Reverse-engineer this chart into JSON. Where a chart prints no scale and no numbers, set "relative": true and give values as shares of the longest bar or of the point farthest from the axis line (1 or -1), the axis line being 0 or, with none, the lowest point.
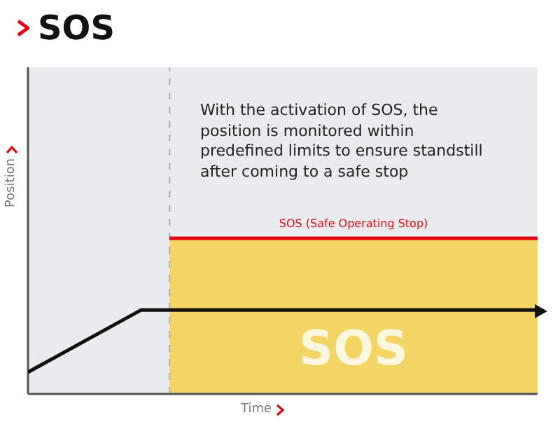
{
  "chart_data": {
    "type": "line",
    "title": "SOS",
    "xlabel": "Time",
    "ylabel": "Position",
    "relative": true,
    "categories": [
      null,
      null,
      null,
      null,
      null,
      null,
      null,
      null,
      null,
      null,
      null,
      null,
      null,
      null,
      null,
      null,
      null,
      null,
      null
    ],
    "series": [
      {
        "type": "area",
        "name": "SOS",
        "color": "#f3d565",
        "values": [
          null,
          null,
          null,
          null,
          null,
          1,
          1,
          1,
          1,
          1,
          1,
          1,
          1,
          1,
          1,
          1,
          1,
          1,
          1
        ]
      },
      {
        "type": "line",
        "name": "SOS (Safe Operating Stop)",
        "color": "#e30613",
        "values": [
          null,
          null,
          null,
          null,
          null,
          1,
          1,
          1,
          1,
          1,
          1,
          1,
          1,
          1,
          1,
          1,
          1,
          1,
          1
        ]
      },
      {
        "color": "#111111",
        "values": [
          0.14,
          null,
          null,
          null,
          0.54,
          0.54,
          0.54,
          0.54,
          0.54,
          0.54,
          0.54,
          0.54,
          0.54,
          0.54,
          0.54,
          0.54,
          0.54,
          0.54,
          0.54
        ]
      }
    ],
    "annotations": [
      "With the activation of SOS, the position is monitored within predefined limits to ensure standstill after coming to a safe stop"
    ]
  }
}
